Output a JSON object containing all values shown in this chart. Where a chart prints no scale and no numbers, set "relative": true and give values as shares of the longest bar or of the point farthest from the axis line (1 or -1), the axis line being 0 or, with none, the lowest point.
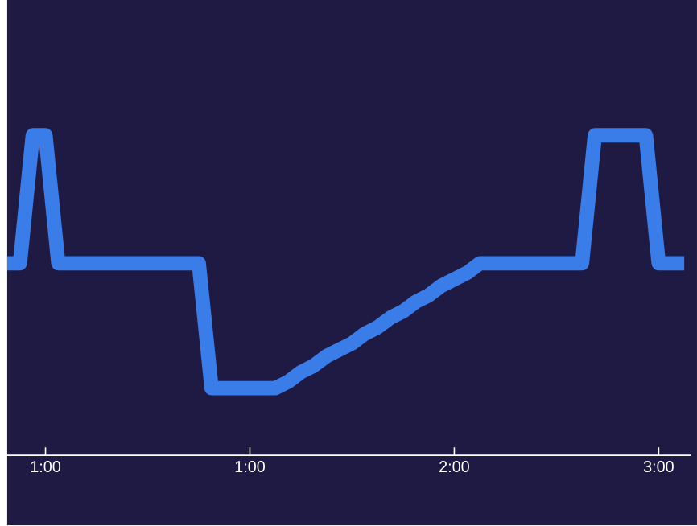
{
  "chart_data": {
    "type": "line",
    "relative": true,
    "categories": [
      null,
      null,
      null,
      "1:00",
      null,
      null,
      null,
      null,
      null,
      null,
      null,
      null,
      null,
      null,
      null,
      null,
      null,
      null,
      null,
      "1:00",
      null,
      null,
      null,
      null,
      null,
      null,
      null,
      null,
      null,
      null,
      null,
      null,
      null,
      null,
      null,
      "2:00",
      null,
      null,
      null,
      null,
      null,
      null,
      null,
      null,
      null,
      null,
      null,
      null,
      null,
      null,
      null,
      "3:00",
      null,
      null
    ],
    "series": [
      {
        "color": "#3b7de8",
        "values": [
          0.6,
          0.6,
          1,
          1,
          0.6,
          0.6,
          0.6,
          0.6,
          0.6,
          0.6,
          0.6,
          0.6,
          0.6,
          0.6,
          0.6,
          0.6,
          0.21,
          0.21,
          0.21,
          0.21,
          0.21,
          0.21,
          0.23,
          0.26,
          0.28,
          0.31,
          0.33,
          0.35,
          0.38,
          0.4,
          0.43,
          0.45,
          0.48,
          0.5,
          0.53,
          0.55,
          0.57,
          0.6,
          0.6,
          0.6,
          0.6,
          0.6,
          0.6,
          0.6,
          0.6,
          0.6,
          1,
          1,
          1,
          1,
          1,
          0.6,
          0.6,
          0.6
        ]
      }
    ],
    "grid": false,
    "marker": "none",
    "line_style": "solid"
  }
}
